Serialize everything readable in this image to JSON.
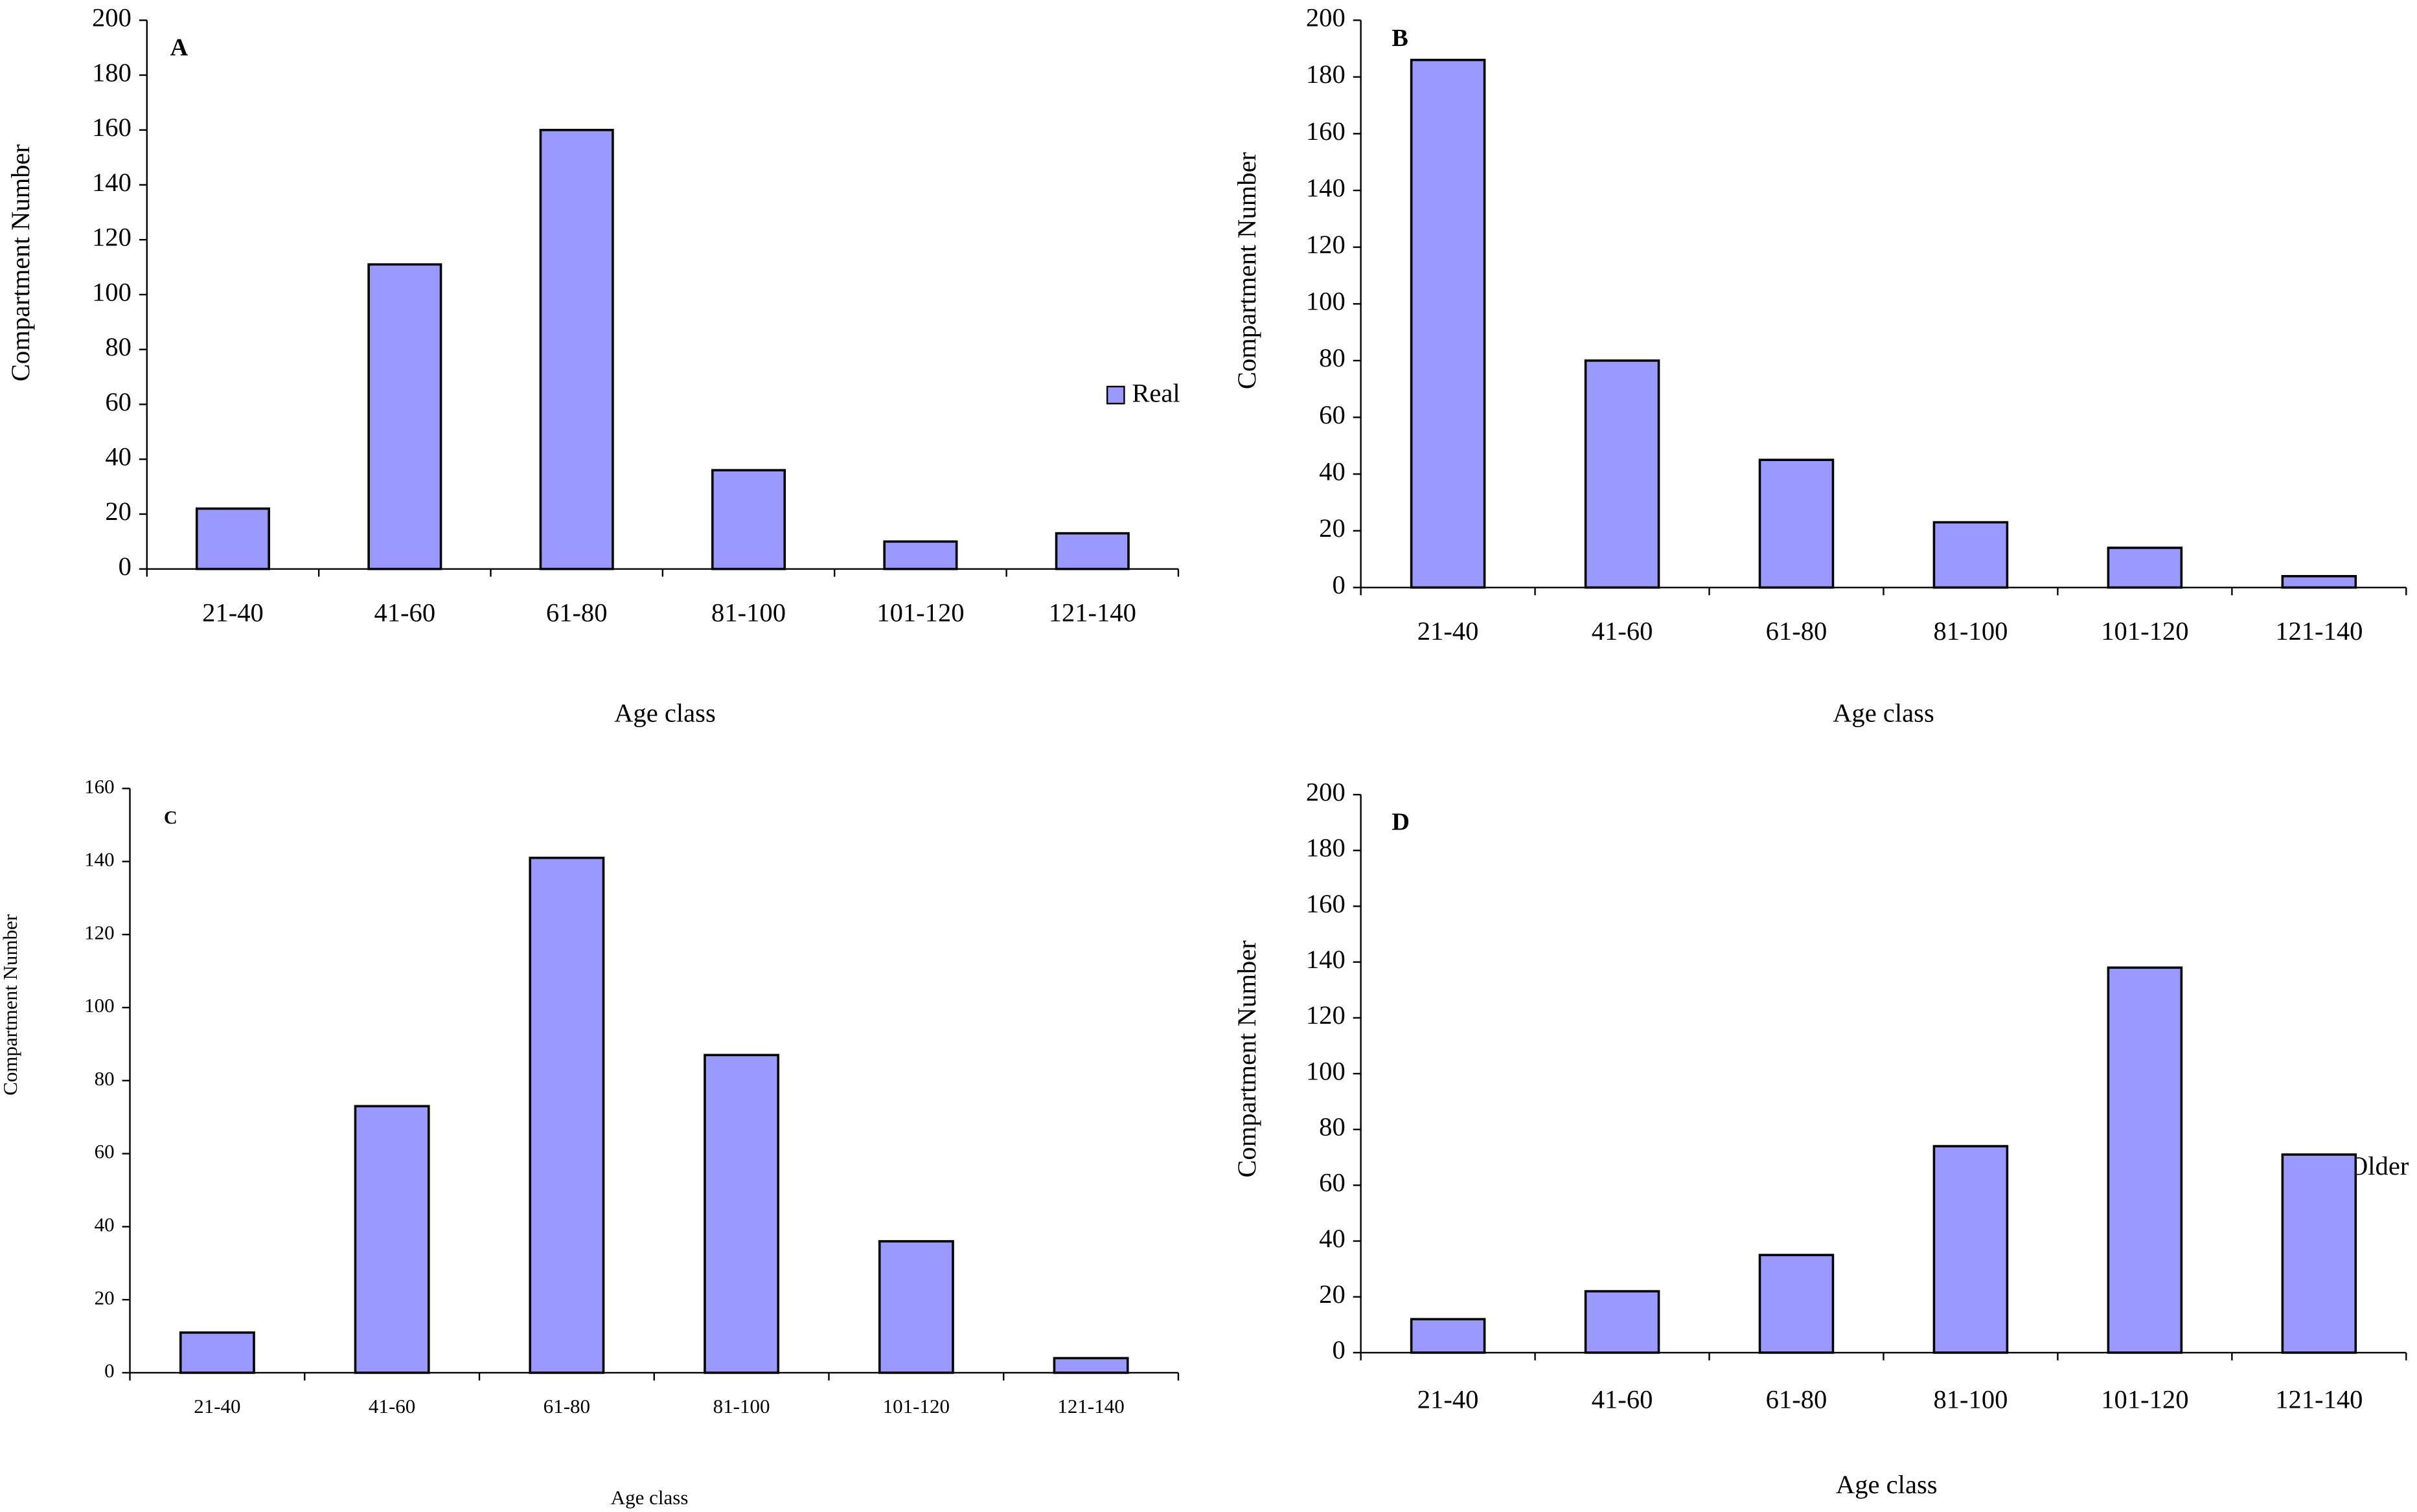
{
  "chart_data": [
    {
      "type": "bar",
      "title": "A",
      "x_label": "Age class",
      "y_label": "Compartment Number",
      "categories": [
        "21-40",
        "41-60",
        "61-80",
        "81-100",
        "101-120",
        "121-140"
      ],
      "series": [
        {
          "name": "Real",
          "color": "#9999ff",
          "values": [
            22,
            111,
            160,
            36,
            10,
            13
          ]
        }
      ],
      "ylim": [
        0,
        200
      ],
      "yticks": [
        0,
        20,
        40,
        60,
        80,
        100,
        120,
        140,
        160,
        180,
        200
      ],
      "legend": "right"
    },
    {
      "type": "bar",
      "title": "B",
      "x_label": "Age class",
      "y_label": "Compartment Number",
      "categories": [
        "21-40",
        "41-60",
        "61-80",
        "81-100",
        "101-120",
        "121-140"
      ],
      "series": [
        {
          "color": "#9999ff",
          "values": [
            186,
            80,
            45,
            23,
            14,
            4
          ]
        }
      ],
      "ylim": [
        0,
        200
      ],
      "yticks": [
        0,
        20,
        40,
        60,
        80,
        100,
        120,
        140,
        160,
        180,
        200
      ]
    },
    {
      "type": "bar",
      "title": "C",
      "x_label": "Age class",
      "y_label": "Compartment Number",
      "categories": [
        "21-40",
        "41-60",
        "61-80",
        "81-100",
        "101-120",
        "121-140"
      ],
      "series": [
        {
          "color": "#9999ff",
          "values": [
            11,
            73,
            141,
            87,
            36,
            4
          ]
        }
      ],
      "ylim": [
        0,
        160
      ],
      "yticks": [
        0,
        20,
        40,
        60,
        80,
        100,
        120,
        140,
        160
      ]
    },
    {
      "type": "bar",
      "title": "D",
      "x_label": "Age class",
      "y_label": "Compartment Number",
      "categories": [
        "21-40",
        "41-60",
        "61-80",
        "81-100",
        "101-120",
        "121-140"
      ],
      "series": [
        {
          "name": "Older",
          "color": "#9999ff",
          "values": [
            12,
            22,
            35,
            74,
            138,
            71
          ]
        }
      ],
      "ylim": [
        0,
        200
      ],
      "yticks": [
        0,
        20,
        40,
        60,
        80,
        100,
        120,
        140,
        160,
        180,
        200
      ],
      "legend": "right"
    }
  ]
}
